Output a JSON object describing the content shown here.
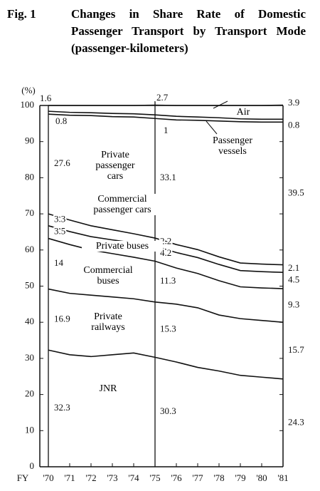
{
  "chart_data": {
    "type": "stacked-line",
    "figure_label": "Fig. 1",
    "title": "Changes in Share Rate of Domestic Passenger Transport by Transport Mode (passenger-kilometers)",
    "ylabel": "(%)",
    "xlabel": "FY",
    "categories": [
      "'70",
      "'71",
      "'72",
      "'73",
      "'74",
      "'75",
      "'76",
      "'77",
      "'78",
      "'79",
      "'80",
      "'81"
    ],
    "ylim": [
      0,
      100
    ],
    "yticks": [
      0,
      10,
      20,
      30,
      40,
      50,
      60,
      70,
      80,
      90,
      100
    ],
    "color": "#111111",
    "series": [
      {
        "name": "JNR",
        "values": [
          32.3,
          31.0,
          30.5,
          31.0,
          31.5,
          30.3,
          29.0,
          27.5,
          26.5,
          25.3,
          24.8,
          24.3
        ]
      },
      {
        "name": "Private railways",
        "values": [
          16.9,
          17.0,
          17.0,
          16.0,
          15.0,
          15.3,
          16.0,
          16.5,
          15.5,
          15.7,
          15.7,
          15.7
        ]
      },
      {
        "name": "Commercial buses",
        "values": [
          14.0,
          13.5,
          12.5,
          12.0,
          11.5,
          11.3,
          10.0,
          9.5,
          9.5,
          8.8,
          9.0,
          9.3
        ]
      },
      {
        "name": "Private buses",
        "values": [
          3.5,
          3.6,
          3.7,
          3.8,
          4.0,
          4.2,
          4.3,
          4.4,
          4.5,
          4.5,
          4.5,
          4.5
        ]
      },
      {
        "name": "Commercial passenger cars",
        "values": [
          3.3,
          3.2,
          3.0,
          2.8,
          2.5,
          2.2,
          2.2,
          2.2,
          2.1,
          2.1,
          2.1,
          2.1
        ]
      },
      {
        "name": "Private passenger cars",
        "values": [
          27.6,
          29.0,
          30.5,
          31.3,
          32.3,
          33.1,
          34.5,
          35.8,
          37.6,
          39.1,
          39.3,
          39.5
        ]
      },
      {
        "name": "Passenger vessels",
        "values": [
          0.8,
          0.8,
          0.8,
          0.9,
          0.9,
          1.0,
          1.0,
          0.9,
          0.9,
          0.8,
          0.8,
          0.8
        ]
      },
      {
        "name": "Air",
        "values": [
          1.6,
          1.9,
          2.0,
          2.2,
          2.3,
          2.7,
          3.0,
          3.2,
          3.4,
          3.7,
          3.8,
          3.9
        ]
      }
    ]
  }
}
